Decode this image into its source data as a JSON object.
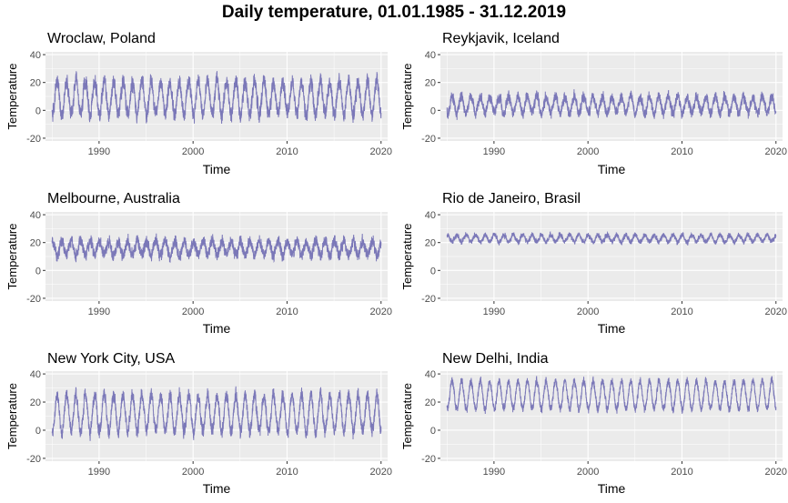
{
  "title": "Daily temperature, 01.01.1985 - 31.12.2019",
  "colors": {
    "series": "#7b78b8",
    "panel_bg": "#ebebeb",
    "grid": "#ffffff",
    "tick_text": "#4d4d4d"
  },
  "chart_data": [
    {
      "type": "line",
      "title": "Wroclaw, Poland",
      "xlabel": "Time",
      "ylabel": "Temperature",
      "xlim": [
        1984.3,
        2020.7
      ],
      "ylim": [
        -22,
        42
      ],
      "xticks": [
        1990,
        2000,
        2010,
        2020
      ],
      "yticks": [
        -20,
        0,
        20,
        40
      ],
      "series": [
        {
          "x_range": [
            1985,
            2020
          ],
          "seasonal_mean": 9,
          "seasonal_amplitude": 12,
          "daily_noise": 6
        }
      ]
    },
    {
      "type": "line",
      "title": "Reykjavik, Iceland",
      "xlabel": "Time",
      "ylabel": "Temperature",
      "xlim": [
        1984.3,
        2020.7
      ],
      "ylim": [
        -22,
        42
      ],
      "xticks": [
        1990,
        2000,
        2010,
        2020
      ],
      "yticks": [
        -20,
        0,
        20,
        40
      ],
      "series": [
        {
          "x_range": [
            1985,
            2020
          ],
          "seasonal_mean": 4,
          "seasonal_amplitude": 6,
          "daily_noise": 4
        }
      ]
    },
    {
      "type": "line",
      "title": "Melbourne, Australia",
      "xlabel": "Time",
      "ylabel": "Temperature",
      "xlim": [
        1984.3,
        2020.7
      ],
      "ylim": [
        -22,
        42
      ],
      "xticks": [
        1990,
        2000,
        2010,
        2020
      ],
      "yticks": [
        -20,
        0,
        20,
        40
      ],
      "series": [
        {
          "x_range": [
            1985,
            2020
          ],
          "seasonal_mean": 16,
          "seasonal_amplitude": -5,
          "daily_noise": 4.5
        }
      ]
    },
    {
      "type": "line",
      "title": "Rio de Janeiro, Brasil",
      "xlabel": "Time",
      "ylabel": "Temperature",
      "xlim": [
        1984.3,
        2020.7
      ],
      "ylim": [
        -22,
        42
      ],
      "xticks": [
        1990,
        2000,
        2010,
        2020
      ],
      "yticks": [
        -20,
        0,
        20,
        40
      ],
      "series": [
        {
          "x_range": [
            1985,
            2020
          ],
          "seasonal_mean": 23,
          "seasonal_amplitude": -2.5,
          "daily_noise": 2
        }
      ]
    },
    {
      "type": "line",
      "title": "New York City, USA",
      "xlabel": "Time",
      "ylabel": "Temperature",
      "xlim": [
        1984.3,
        2020.7
      ],
      "ylim": [
        -22,
        42
      ],
      "xticks": [
        1990,
        2000,
        2010,
        2020
      ],
      "yticks": [
        -20,
        0,
        20,
        40
      ],
      "series": [
        {
          "x_range": [
            1985,
            2020
          ],
          "seasonal_mean": 12,
          "seasonal_amplitude": 13,
          "daily_noise": 5
        }
      ]
    },
    {
      "type": "line",
      "title": "New Delhi, India",
      "xlabel": "Time",
      "ylabel": "Temperature",
      "xlim": [
        1984.3,
        2020.7
      ],
      "ylim": [
        -22,
        42
      ],
      "xticks": [
        1990,
        2000,
        2010,
        2020
      ],
      "yticks": [
        -20,
        0,
        20,
        40
      ],
      "series": [
        {
          "x_range": [
            1985,
            2020
          ],
          "seasonal_mean": 25,
          "seasonal_amplitude": 10,
          "daily_noise": 3
        }
      ]
    }
  ]
}
